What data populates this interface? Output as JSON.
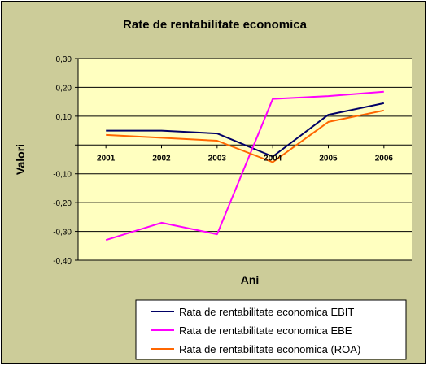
{
  "chart_data": {
    "type": "line",
    "title": "Rate de rentabilitate economica",
    "xlabel": "Ani",
    "ylabel": "Valori",
    "categories": [
      "2001",
      "2002",
      "2003",
      "2004",
      "2005",
      "2006"
    ],
    "ylim": [
      -0.4,
      0.3
    ],
    "yticks": [
      0.3,
      0.2,
      0.1,
      0,
      -0.1,
      -0.2,
      -0.3,
      -0.4
    ],
    "ytick_labels": [
      "0,30",
      "0,20",
      "0,10",
      "-",
      "-0,10",
      "-0,20",
      "-0,30",
      "-0,40"
    ],
    "grid": true,
    "legend_position": "bottom-right",
    "plot_background": "#ffffc0",
    "series": [
      {
        "name": "Rata de rentabilitate economica EBIT",
        "color": "#000066",
        "values": [
          0.05,
          0.05,
          0.04,
          -0.04,
          0.105,
          0.145
        ]
      },
      {
        "name": "Rata de rentabilitate economica EBE",
        "color": "#ff00ff",
        "values": [
          -0.33,
          -0.27,
          -0.31,
          0.16,
          0.17,
          0.185
        ]
      },
      {
        "name": "Rata de rentabilitate economica (ROA)",
        "color": "#ff6600",
        "values": [
          0.035,
          0.025,
          0.015,
          -0.06,
          0.08,
          0.12
        ]
      }
    ]
  }
}
